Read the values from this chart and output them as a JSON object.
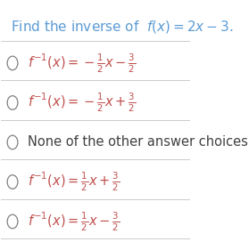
{
  "background_color": "#ffffff",
  "title_text": "Find the inverse of  $f(x) = 2x - 3$.",
  "title_color": "#5b9bd5",
  "title_fontsize": 11,
  "options": [
    "$f^{-1}(x) = -\\frac{1}{2}x - \\frac{3}{2}$",
    "$f^{-1}(x) = -\\frac{1}{2}x + \\frac{3}{2}$",
    "None of the other answer choices.",
    "$f^{-1}(x) = \\frac{1}{2}x + \\frac{3}{2}$",
    "$f^{-1}(x) = \\frac{1}{2}x - \\frac{3}{2}$"
  ],
  "option_color": "#c0504d",
  "option_plain_color": "#404040",
  "circle_color": "#808080",
  "divider_color": "#cccccc",
  "option_fontsize": 10.5,
  "fig_width": 2.79,
  "fig_height": 2.81
}
